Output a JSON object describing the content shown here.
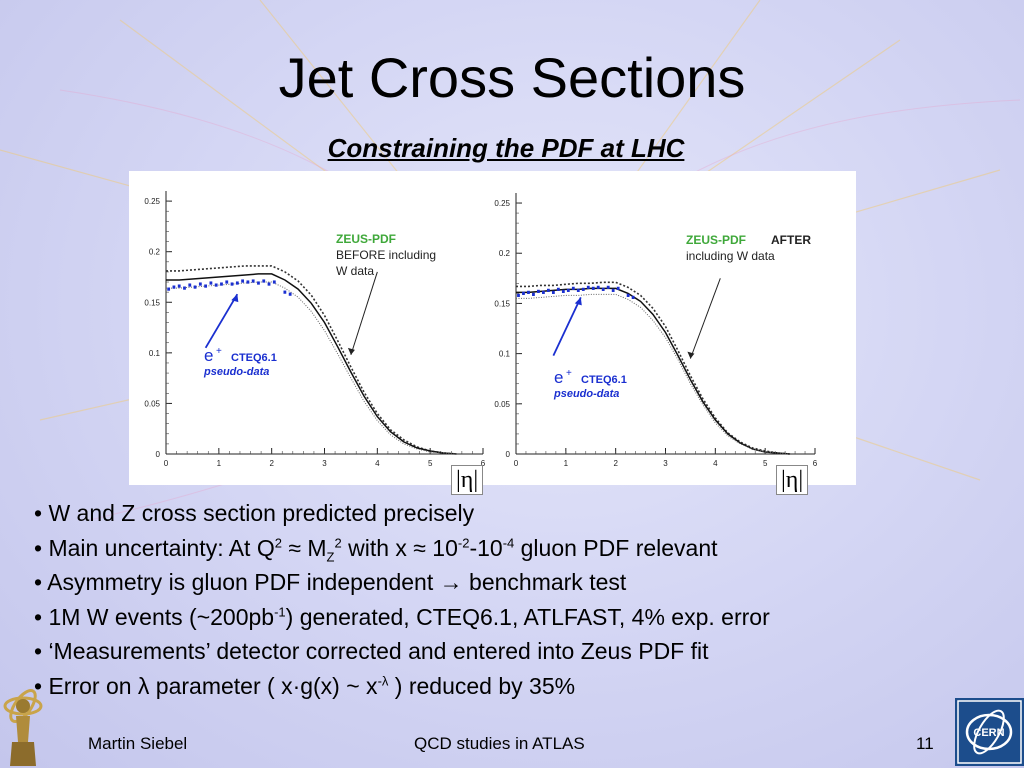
{
  "slide": {
    "title": "Jet Cross Sections",
    "subtitle": "Constraining the PDF at LHC"
  },
  "bullets": {
    "b1": "• W and Z cross section predicted precisely",
    "b2": {
      "p1": "• Main uncertainty: At Q",
      "p2": "2",
      "p3": " ≈ M",
      "p4": "Z",
      "p5": "2",
      "p6": " with x ≈ 10",
      "p7": "-2",
      "p8": "-10",
      "p9": "-4",
      "p10": " gluon PDF relevant"
    },
    "b3": "• Asymmetry is gluon PDF independent → benchmark test",
    "b4": {
      "p1": "• 1M W events (~200pb",
      "p2": "-1",
      "p3": ") generated, CTEQ6.1, ATLFAST, 4% exp. error"
    },
    "b5": "• ‘Measurements’ detector corrected and entered into Zeus PDF fit",
    "b6": {
      "p1": "• Error on λ parameter ( x·g(x) ~ x",
      "p2": "-λ",
      "p3": " ) reduced by 35%"
    }
  },
  "footer": {
    "author": "Martin Siebel",
    "center": "QCD studies in ATLAS",
    "page": "11"
  },
  "logos": {
    "left": "atlas-logo",
    "right": "cern-logo",
    "cern_text": "CERN"
  },
  "colors": {
    "pseudo_data": "#1a2fd0",
    "zeus_green": "#3fa83a",
    "band": "#555555"
  },
  "chart_data": [
    {
      "type": "line",
      "xlabel": "|η|",
      "xlim": [
        0,
        6
      ],
      "ylim": [
        0,
        0.26
      ],
      "xticks": [
        "0",
        "1",
        "2",
        "3",
        "4",
        "5",
        "6"
      ],
      "yticks": [
        "0",
        "0.05",
        "0.1",
        "0.15",
        "0.2",
        "0.25"
      ],
      "annotation": {
        "zeus": "ZEUS-PDF",
        "line1": "BEFORE including",
        "line2": "W data"
      },
      "data_label": {
        "e": "e",
        "plus": "+",
        "cteq": "CTEQ6.1",
        "pseudo": "pseudo-data"
      },
      "x": [
        0,
        0.25,
        0.5,
        0.75,
        1.0,
        1.25,
        1.5,
        1.75,
        2.0,
        2.25,
        2.5,
        2.75,
        3.0,
        3.25,
        3.5,
        3.75,
        4.0,
        4.25,
        4.5,
        4.75,
        5.0,
        5.25,
        5.5
      ],
      "series": [
        {
          "name": "upper",
          "values": [
            0.181,
            0.181,
            0.182,
            0.183,
            0.184,
            0.185,
            0.186,
            0.186,
            0.186,
            0.18,
            0.171,
            0.157,
            0.137,
            0.112,
            0.086,
            0.061,
            0.04,
            0.024,
            0.014,
            0.007,
            0.003,
            0.001,
            0.0
          ]
        },
        {
          "name": "central",
          "values": [
            0.172,
            0.172,
            0.173,
            0.174,
            0.175,
            0.176,
            0.177,
            0.178,
            0.178,
            0.172,
            0.163,
            0.149,
            0.13,
            0.106,
            0.081,
            0.057,
            0.037,
            0.022,
            0.012,
            0.006,
            0.003,
            0.001,
            0.0
          ]
        },
        {
          "name": "lower",
          "values": [
            0.164,
            0.164,
            0.165,
            0.166,
            0.167,
            0.168,
            0.169,
            0.17,
            0.17,
            0.164,
            0.155,
            0.141,
            0.122,
            0.099,
            0.075,
            0.052,
            0.033,
            0.019,
            0.01,
            0.005,
            0.002,
            0.001,
            0.0
          ]
        }
      ],
      "points": {
        "x": [
          0.05,
          0.15,
          0.25,
          0.35,
          0.45,
          0.55,
          0.65,
          0.75,
          0.85,
          0.95,
          1.05,
          1.15,
          1.25,
          1.35,
          1.45,
          1.55,
          1.65,
          1.75,
          1.85,
          1.95,
          2.05,
          2.25,
          2.35
        ],
        "y": [
          0.163,
          0.165,
          0.166,
          0.164,
          0.167,
          0.165,
          0.168,
          0.166,
          0.169,
          0.167,
          0.168,
          0.17,
          0.168,
          0.169,
          0.171,
          0.17,
          0.171,
          0.169,
          0.171,
          0.168,
          0.17,
          0.16,
          0.158
        ]
      }
    },
    {
      "type": "line",
      "xlabel": "|η|",
      "xlim": [
        0,
        6
      ],
      "ylim": [
        0,
        0.26
      ],
      "xticks": [
        "0",
        "1",
        "2",
        "3",
        "4",
        "5",
        "6"
      ],
      "yticks": [
        "0",
        "0.05",
        "0.1",
        "0.15",
        "0.2",
        "0.25"
      ],
      "annotation": {
        "zeus": "ZEUS-PDF",
        "after": "AFTER",
        "line2": "including W data"
      },
      "data_label": {
        "e": "e",
        "plus": "+",
        "cteq": "CTEQ6.1",
        "pseudo": "pseudo-data"
      },
      "x": [
        0,
        0.25,
        0.5,
        0.75,
        1.0,
        1.25,
        1.5,
        1.75,
        2.0,
        2.25,
        2.5,
        2.75,
        3.0,
        3.25,
        3.5,
        3.75,
        4.0,
        4.25,
        4.5,
        4.75,
        5.0,
        5.25,
        5.5
      ],
      "series": [
        {
          "name": "upper",
          "values": [
            0.167,
            0.167,
            0.168,
            0.168,
            0.169,
            0.17,
            0.17,
            0.171,
            0.171,
            0.166,
            0.158,
            0.145,
            0.127,
            0.103,
            0.078,
            0.055,
            0.036,
            0.021,
            0.012,
            0.006,
            0.003,
            0.001,
            0.0
          ]
        },
        {
          "name": "central",
          "values": [
            0.161,
            0.161,
            0.162,
            0.163,
            0.164,
            0.164,
            0.165,
            0.165,
            0.165,
            0.16,
            0.152,
            0.139,
            0.121,
            0.098,
            0.074,
            0.052,
            0.034,
            0.02,
            0.011,
            0.005,
            0.002,
            0.001,
            0.0
          ]
        },
        {
          "name": "lower",
          "values": [
            0.155,
            0.155,
            0.156,
            0.157,
            0.158,
            0.158,
            0.159,
            0.159,
            0.159,
            0.154,
            0.146,
            0.133,
            0.116,
            0.094,
            0.07,
            0.049,
            0.031,
            0.018,
            0.01,
            0.005,
            0.002,
            0.001,
            0.0
          ]
        }
      ],
      "points": {
        "x": [
          0.05,
          0.15,
          0.25,
          0.35,
          0.45,
          0.55,
          0.65,
          0.75,
          0.85,
          0.95,
          1.05,
          1.15,
          1.25,
          1.35,
          1.45,
          1.55,
          1.65,
          1.75,
          1.85,
          1.95,
          2.05,
          2.25,
          2.35
        ],
        "y": [
          0.158,
          0.16,
          0.161,
          0.159,
          0.162,
          0.161,
          0.163,
          0.161,
          0.164,
          0.162,
          0.163,
          0.165,
          0.163,
          0.164,
          0.166,
          0.165,
          0.166,
          0.164,
          0.166,
          0.163,
          0.165,
          0.158,
          0.156
        ]
      }
    }
  ]
}
